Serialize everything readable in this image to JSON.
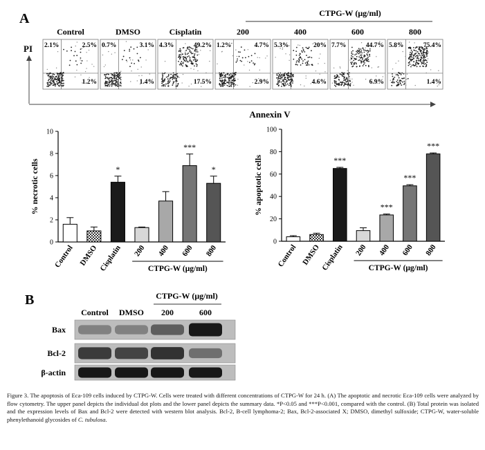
{
  "panel_a_label": "A",
  "panel_b_label": "B",
  "group_header": "CTPG-W (μg/ml)",
  "flow": {
    "y_axis_label": "PI",
    "x_axis_label": "Annexin V",
    "panels": [
      {
        "label": "Control",
        "ul": "2.1%",
        "ur": "2.5%",
        "lr": "1.2%"
      },
      {
        "label": "DMSO",
        "ul": "0.7%",
        "ur": "3.1%",
        "lr": "1.4%"
      },
      {
        "label": "Cisplatin",
        "ul": "4.3%",
        "ur": "49.2%",
        "lr": "17.5%"
      },
      {
        "label": "200",
        "ul": "1.2%",
        "ur": "4.7%",
        "lr": "2.9%"
      },
      {
        "label": "400",
        "ul": "5.3%",
        "ur": "20%",
        "lr": "4.6%"
      },
      {
        "label": "600",
        "ul": "7.7%",
        "ur": "44.7%",
        "lr": "6.9%"
      },
      {
        "label": "800",
        "ul": "5.8%",
        "ur": "75.4%",
        "lr": "1.4%"
      }
    ]
  },
  "chart_data": [
    {
      "type": "bar",
      "ylabel": "% necrotic cells",
      "xlabel": "CTPG-W (μg/ml)",
      "categories": [
        "Control",
        "DMSO",
        "Cisplatin",
        "200",
        "400",
        "600",
        "800"
      ],
      "values": [
        1.6,
        1.0,
        5.4,
        1.3,
        3.7,
        6.9,
        5.3
      ],
      "errors": [
        0.6,
        0.35,
        0.55,
        0.05,
        0.85,
        1.05,
        0.65
      ],
      "significance": [
        "",
        "",
        "*",
        "",
        "",
        "***",
        "*"
      ],
      "fills": [
        "#ffffff",
        "checker",
        "#1a1a1a",
        "#d8d8d8",
        "#a8a8a8",
        "#767676",
        "#555555"
      ],
      "ylim": [
        0,
        10
      ],
      "yticks": [
        0,
        2,
        4,
        6,
        8,
        10
      ],
      "ytick_labels": [
        "0",
        "2",
        "4",
        "6",
        "8",
        "10"
      ]
    },
    {
      "type": "bar",
      "ylabel": "% apoptotic cells",
      "xlabel": "CTPG-W (μg/ml)",
      "categories": [
        "Control",
        "DMSO",
        "Cisplatin",
        "200",
        "400",
        "600",
        "800"
      ],
      "values": [
        4.0,
        6.0,
        65.0,
        9.5,
        23.5,
        49.5,
        78.0
      ],
      "errors": [
        1.0,
        1.2,
        1.0,
        2.5,
        0.8,
        1.0,
        0.9
      ],
      "significance": [
        "",
        "",
        "***",
        "",
        "***",
        "***",
        "***"
      ],
      "fills": [
        "#ffffff",
        "checker",
        "#1a1a1a",
        "#d8d8d8",
        "#a8a8a8",
        "#767676",
        "#555555"
      ],
      "ylim": [
        0,
        100
      ],
      "yticks": [
        0,
        20,
        40,
        60,
        80,
        100
      ],
      "ytick_labels": [
        "0",
        "20",
        "40",
        "60",
        "80",
        "100"
      ]
    }
  ],
  "western": {
    "columns": [
      "Control",
      "DMSO",
      "200",
      "600"
    ],
    "rows": [
      "Bax",
      "Bcl-2",
      "β-actin"
    ],
    "intensity": [
      [
        0.35,
        0.35,
        0.55,
        0.95
      ],
      [
        0.75,
        0.7,
        0.8,
        0.45
      ],
      [
        0.95,
        0.95,
        0.95,
        0.95
      ]
    ]
  },
  "caption": {
    "line1": "Figure 3. The apoptosis of Eca-109 cells induced by CTPG-W. Cells were treated with different concentrations of CTPG-W for 24 h. (A) The apoptotic and",
    "line2": "necrotic Eca-109 cells were analyzed by flow cytometry. The upper panel depicts the individual dot plots and the lower panel depicts the summary data.",
    "line3": "*P<0.05 and ***P<0.001, compared with the control. (B) Total protein was isolated and the expression levels of Bax and Bcl-2 were detected with western blot",
    "line4": "analysis. Bcl-2, B-cell lymphoma-2; Bax, Bcl-2-associated X; DMSO, dimethyl sulfoxide; CTPG-W, water-soluble phenylethanoid glycosides of ",
    "species": "C. tubulosa",
    "end": "."
  }
}
